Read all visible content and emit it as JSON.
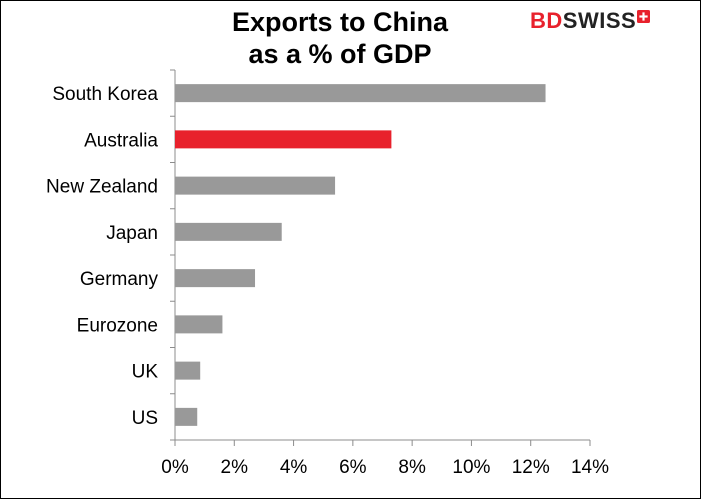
{
  "logo": {
    "text_bd": "BD",
    "text_swiss": "SWISS",
    "mark_icon": "swiss-cross-icon",
    "brand_color": "#e8212c"
  },
  "chart_data": {
    "type": "bar",
    "orientation": "horizontal",
    "title": "Exports to China as a % of GDP",
    "title_lines": [
      "Exports to China",
      "as a % of GDP"
    ],
    "categories": [
      "South Korea",
      "Australia",
      "New Zealand",
      "Japan",
      "Germany",
      "Eurozone",
      "UK",
      "US"
    ],
    "values": [
      12.5,
      7.3,
      5.4,
      3.6,
      2.7,
      1.6,
      0.85,
      0.75
    ],
    "value_unit": "%",
    "bar_colors": [
      "#999999",
      "#e8212c",
      "#999999",
      "#999999",
      "#999999",
      "#999999",
      "#999999",
      "#999999"
    ],
    "xlim": [
      0,
      14
    ],
    "x_ticks": [
      0,
      2,
      4,
      6,
      8,
      10,
      12,
      14
    ],
    "x_tick_labels": [
      "0%",
      "2%",
      "4%",
      "6%",
      "8%",
      "10%",
      "12%",
      "14%"
    ],
    "xlabel": "",
    "ylabel": "",
    "grid": false,
    "legend": "none"
  }
}
